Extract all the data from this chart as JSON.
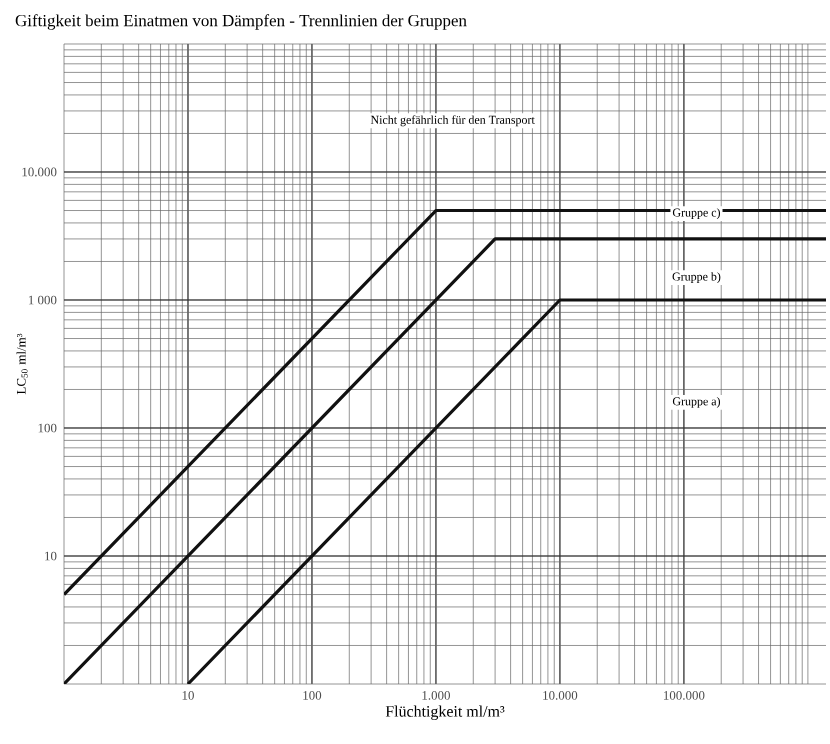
{
  "chart_data": {
    "type": "line",
    "title": "Giftigkeit beim Einatmen von Dämpfen - Trennlinien der Gruppen",
    "xlabel": "Flüchtigkeit ml/m³",
    "ylabel": "LC$_{50}$ ml/m³",
    "log": "xy",
    "grid": true,
    "marker": "none",
    "line_style": "solid",
    "xlim": [
      1,
      1400000
    ],
    "ylim": [
      1,
      100000
    ],
    "xticks": [
      10,
      100,
      {
        "value": 1000,
        "label": "1.000"
      },
      {
        "value": 10000,
        "label": "10.000"
      },
      {
        "value": 100000,
        "label": "100.000"
      }
    ],
    "yticks": [
      10,
      100,
      {
        "value": 1000,
        "label": "1 000"
      },
      {
        "value": 10000,
        "label": "10.000"
      }
    ],
    "series": [
      {
        "color": "#111111",
        "x": [
          1,
          1000,
          1400000
        ],
        "values": [
          5,
          5000,
          5000
        ]
      },
      {
        "color": "#111111",
        "x": [
          1,
          3000,
          1400000
        ],
        "values": [
          1,
          3000,
          3000
        ]
      },
      {
        "color": "#111111",
        "x": [
          10,
          10000,
          1400000
        ],
        "values": [
          1,
          1000,
          1000
        ]
      }
    ],
    "annotations": [
      "Nicht gefährlich für den Transport",
      "Gruppe c)",
      "Gruppe b)",
      "Gruppe a)"
    ]
  }
}
